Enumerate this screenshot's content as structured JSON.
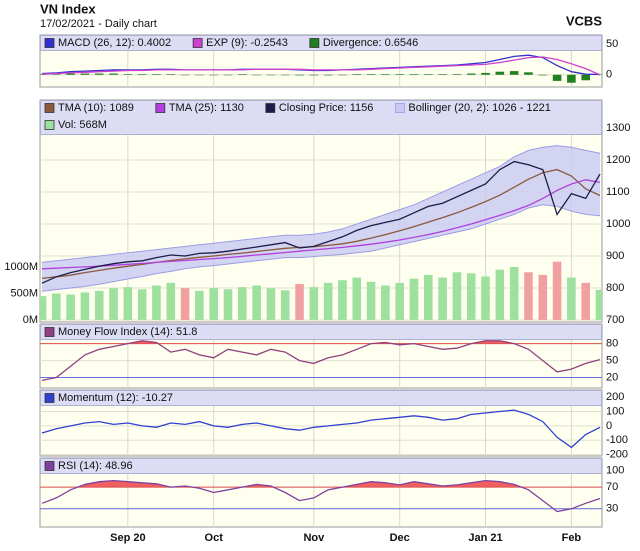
{
  "header": {
    "title": "VN Index",
    "subtitle": "17/02/2021 - Daily chart",
    "source": "VCBS"
  },
  "chart_data": [
    {
      "type": "line",
      "ylim": [
        -20,
        65
      ],
      "yticks": [
        0,
        50
      ],
      "grid": true,
      "series": [
        {
          "name": "MACD (26, 12): 0.4002",
          "kind": "line",
          "color": "#3030d0",
          "values": [
            2,
            3,
            5,
            6,
            7,
            8,
            8,
            8,
            9,
            9,
            8,
            8,
            8,
            8,
            9,
            9,
            9,
            9,
            8,
            7,
            7,
            8,
            9,
            10,
            11,
            12,
            13,
            14,
            15,
            16,
            18,
            20,
            25,
            30,
            32,
            28,
            15,
            5,
            1,
            0.4002
          ]
        },
        {
          "name": "EXP (9): -0.2543",
          "kind": "line",
          "color": "#d040d0",
          "values": [
            1,
            2,
            3,
            4,
            5,
            6,
            7,
            7,
            8,
            8,
            8,
            8,
            8,
            8,
            8,
            9,
            9,
            9,
            9,
            8,
            8,
            8,
            8,
            9,
            10,
            11,
            12,
            13,
            14,
            15,
            16,
            17,
            20,
            24,
            28,
            29,
            25,
            18,
            10,
            -0.2543
          ]
        },
        {
          "name": "Divergence: 0.6546",
          "kind": "bar",
          "color": "#208020",
          "values": [
            1,
            1,
            2,
            2,
            2,
            2,
            1,
            1,
            1,
            1,
            0,
            0,
            0,
            0,
            1,
            0,
            0,
            0,
            -1,
            -1,
            -1,
            0,
            1,
            1,
            1,
            1,
            1,
            1,
            1,
            1,
            2,
            3,
            5,
            6,
            4,
            -1,
            -10,
            -13,
            -9,
            0.6546
          ]
        }
      ]
    },
    {
      "type": "line",
      "ylim": [
        700,
        1300
      ],
      "yticks": [
        700,
        800,
        900,
        1000,
        1100,
        1200,
        1300
      ],
      "grid": true,
      "y2lim": [
        0,
        3620
      ],
      "y2ticks": [
        {
          "value": 0,
          "label": "0M"
        },
        {
          "value": 500,
          "label": "500M"
        },
        {
          "value": 1000,
          "label": "1000M"
        }
      ],
      "series": [
        {
          "name": "TMA (10): 1089",
          "kind": "line",
          "color": "#8b5a3c",
          "values": [
            830,
            835,
            840,
            848,
            855,
            862,
            868,
            874,
            880,
            886,
            891,
            896,
            900,
            905,
            909,
            914,
            919,
            924,
            927,
            929,
            933,
            938,
            946,
            956,
            967,
            979,
            992,
            1006,
            1020,
            1035,
            1052,
            1070,
            1090,
            1115,
            1140,
            1160,
            1170,
            1150,
            1110,
            1089
          ]
        },
        {
          "name": "TMA (25): 1130",
          "kind": "line",
          "color": "#b040e0",
          "values": [
            860,
            862,
            864,
            866,
            868,
            871,
            874,
            877,
            880,
            883,
            886,
            889,
            892,
            895,
            899,
            903,
            907,
            911,
            915,
            919,
            923,
            927,
            932,
            937,
            943,
            950,
            958,
            967,
            977,
            988,
            1000,
            1013,
            1027,
            1042,
            1058,
            1080,
            1105,
            1125,
            1138,
            1130
          ]
        },
        {
          "name": "Closing Price: 1156",
          "kind": "line",
          "color": "#1c1c48",
          "values": [
            815,
            835,
            848,
            858,
            868,
            876,
            882,
            885,
            895,
            903,
            900,
            908,
            910,
            915,
            922,
            928,
            935,
            942,
            925,
            930,
            945,
            960,
            980,
            995,
            1005,
            1015,
            1035,
            1055,
            1065,
            1085,
            1105,
            1125,
            1170,
            1195,
            1185,
            1170,
            1030,
            1095,
            1080,
            1156
          ]
        },
        {
          "name": "Bollinger (20, 2): 1026 - 1221",
          "kind": "band",
          "color": "#c8c8f2",
          "stroke": "#9c9ce6",
          "upper": [
            880,
            885,
            890,
            895,
            900,
            905,
            910,
            915,
            920,
            925,
            930,
            935,
            940,
            945,
            950,
            955,
            960,
            965,
            965,
            968,
            975,
            985,
            1000,
            1015,
            1030,
            1045,
            1060,
            1080,
            1100,
            1120,
            1140,
            1160,
            1180,
            1210,
            1230,
            1240,
            1245,
            1240,
            1230,
            1221
          ],
          "lower": [
            790,
            795,
            800,
            805,
            812,
            820,
            828,
            836,
            845,
            852,
            860,
            866,
            870,
            875,
            880,
            885,
            890,
            895,
            895,
            898,
            902,
            905,
            910,
            915,
            925,
            935,
            945,
            955,
            965,
            975,
            985,
            1000,
            1015,
            1030,
            1050,
            1060,
            1055,
            1040,
            1030,
            1026
          ]
        },
        {
          "name": "Vol: 568M",
          "kind": "bar",
          "axis": "y2",
          "color": "#9ee09e",
          "down_color": "#f0a0a0",
          "values": [
            450,
            500,
            480,
            520,
            550,
            600,
            620,
            580,
            650,
            700,
            600,
            550,
            600,
            580,
            620,
            650,
            600,
            560,
            680,
            620,
            700,
            750,
            800,
            720,
            650,
            700,
            780,
            850,
            800,
            900,
            880,
            820,
            950,
            1000,
            900,
            850,
            1100,
            800,
            700,
            568
          ]
        }
      ]
    },
    {
      "type": "line",
      "ylim": [
        5,
        90
      ],
      "yticks": [
        20,
        50,
        80
      ],
      "grid": true,
      "overbought": 80,
      "oversold": 20,
      "fill_color": "#f06060",
      "series": [
        {
          "name": "Money Flow Index (14): 51.8",
          "kind": "line",
          "color": "#904080",
          "values": [
            15,
            20,
            40,
            60,
            70,
            75,
            80,
            85,
            82,
            65,
            70,
            60,
            55,
            70,
            65,
            60,
            70,
            65,
            50,
            45,
            55,
            60,
            70,
            80,
            82,
            78,
            80,
            75,
            70,
            72,
            80,
            85,
            85,
            80,
            70,
            50,
            30,
            35,
            45,
            51.8
          ]
        }
      ]
    },
    {
      "type": "line",
      "ylim": [
        -210,
        250
      ],
      "yticks": [
        -200,
        -100,
        0,
        100,
        200
      ],
      "grid": true,
      "series": [
        {
          "name": "Momentum (12): -10.27",
          "kind": "line",
          "color": "#3040d0",
          "values": [
            -50,
            -20,
            0,
            20,
            30,
            10,
            20,
            0,
            -10,
            20,
            10,
            30,
            0,
            -10,
            10,
            20,
            0,
            -20,
            -30,
            -10,
            0,
            10,
            20,
            40,
            50,
            60,
            70,
            60,
            40,
            50,
            80,
            90,
            100,
            110,
            80,
            30,
            -80,
            -150,
            -60,
            -10.27
          ]
        }
      ]
    },
    {
      "type": "line",
      "ylim": [
        0,
        120
      ],
      "yticks": [
        30,
        70,
        100
      ],
      "grid": true,
      "overbought": 70,
      "oversold": 30,
      "fill_color": "#f06060",
      "categories": [
        null,
        null,
        null,
        null,
        null,
        null,
        "Sep 20",
        null,
        null,
        null,
        null,
        null,
        "Oct",
        null,
        null,
        null,
        null,
        null,
        null,
        "Nov",
        null,
        null,
        null,
        null,
        null,
        "Dec",
        null,
        null,
        null,
        null,
        null,
        "Jan 21",
        null,
        null,
        null,
        null,
        null,
        "Feb",
        null,
        null
      ],
      "series": [
        {
          "name": "RSI (14): 48.96",
          "kind": "line",
          "color": "#8040a0",
          "values": [
            40,
            50,
            65,
            75,
            80,
            82,
            80,
            78,
            76,
            70,
            72,
            68,
            60,
            65,
            70,
            75,
            72,
            60,
            45,
            50,
            65,
            70,
            75,
            80,
            78,
            74,
            80,
            76,
            72,
            74,
            78,
            82,
            80,
            75,
            65,
            45,
            25,
            30,
            40,
            48.96
          ]
        }
      ]
    }
  ]
}
